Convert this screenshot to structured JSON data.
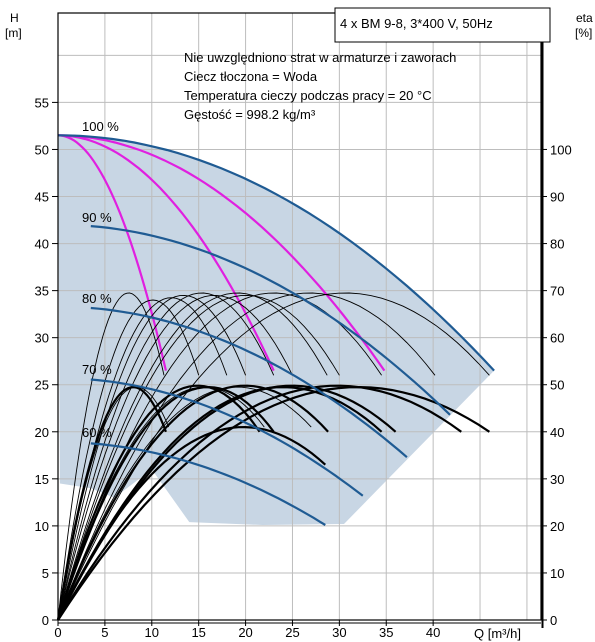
{
  "chart_data": {
    "type": "line",
    "title": "4 x BM 9-8, 3*400 V, 50Hz",
    "notes": [
      "Nie uwzględniono strat w armaturze i zaworach",
      "Ciecz tłoczona = Woda",
      "Temperatura cieczy podczas pracy = 20 °C",
      "Gęstość = 998.2 kg/m³"
    ],
    "xlabel": "Q [m³/h]",
    "ylabel_left": [
      "H",
      "[m]"
    ],
    "ylabel_right": [
      "eta",
      "[%]"
    ],
    "xlim": [
      0,
      51.5
    ],
    "ylim_left": [
      0,
      64.5
    ],
    "ylim_right": [
      0,
      129
    ],
    "x_ticks": [
      "0",
      "5",
      "10",
      "15",
      "20",
      "25",
      "30",
      "35",
      "40"
    ],
    "y_ticks_left": [
      "0",
      "5",
      "10",
      "15",
      "20",
      "25",
      "30",
      "35",
      "40",
      "45",
      "50",
      "55"
    ],
    "y_ticks_right": [
      "0",
      "10",
      "20",
      "30",
      "40",
      "50",
      "60",
      "70",
      "80",
      "90",
      "100"
    ],
    "grid": true,
    "colors": {
      "head_curve": "#1f5b93",
      "system_curve": "#e020e0",
      "efficiency_curve": "#000000",
      "operating_area": "#c8d6e4",
      "grid": "#bdbdbd"
    },
    "speed_labels": [
      "100 %",
      "90 %",
      "80 %",
      "70 %",
      "60 %"
    ],
    "series": [
      {
        "speed": "100 %",
        "H0": 51.5,
        "Qmax": 46.5,
        "Hmin": 26.5,
        "qstart": 0
      },
      {
        "speed": "90 %",
        "H0": 42.0,
        "Qmax": 41.8,
        "Hmin": 21.8,
        "qstart": 3.5
      },
      {
        "speed": "80 %",
        "H0": 33.3,
        "Qmax": 37.2,
        "Hmin": 17.3,
        "qstart": 3.5
      },
      {
        "speed": "70 %",
        "H0": 25.7,
        "Qmax": 32.5,
        "Hmin": 13.2,
        "qstart": 3.5
      },
      {
        "speed": "60 %",
        "H0": 18.9,
        "Qmax": 28.5,
        "Hmin": 10.1,
        "qstart": 3.5
      }
    ],
    "system_curves": [
      {
        "H_at_zero": 51.5,
        "Q_end": 11.5,
        "H_end": 26.5
      },
      {
        "H_at_zero": 51.5,
        "Q_end": 23.0,
        "H_end": 26.5
      },
      {
        "H_at_zero": 51.5,
        "Q_end": 34.8,
        "H_end": 26.5
      }
    ],
    "efficiency_curves_thin": [
      {
        "Qmax": 11.3,
        "peak": 69.5,
        "end": 52
      },
      {
        "Qmax": 23.0,
        "peak": 69.5,
        "end": 52
      },
      {
        "Qmax": 28.7,
        "peak": 69.5,
        "end": 52
      },
      {
        "Qmax": 34.5,
        "peak": 69.5,
        "end": 52
      },
      {
        "Qmax": 40.2,
        "peak": 69.5,
        "end": 52
      },
      {
        "Qmax": 46.0,
        "peak": 69.5,
        "end": 52
      },
      {
        "Qmax": 20.0,
        "peak": 69.0,
        "end": 52
      },
      {
        "Qmax": 25.0,
        "peak": 69.0,
        "end": 52
      },
      {
        "Qmax": 30.0,
        "peak": 69.0,
        "end": 52
      },
      {
        "Qmax": 15.0,
        "peak": 68.0,
        "end": 52
      },
      {
        "Qmax": 18.0,
        "peak": 68.5,
        "end": 52
      },
      {
        "Qmax": 11.8,
        "peak": 49.5,
        "end": 41
      },
      {
        "Qmax": 22.0,
        "peak": 49.5,
        "end": 41
      },
      {
        "Qmax": 27.0,
        "peak": 49.5,
        "end": 41
      }
    ],
    "efficiency_curves_thick": [
      {
        "Qmax": 11.5,
        "peak": 49.5,
        "end": 40
      },
      {
        "Qmax": 23.0,
        "peak": 49.5,
        "end": 40
      },
      {
        "Qmax": 34.5,
        "peak": 49.5,
        "end": 40
      },
      {
        "Qmax": 46.0,
        "peak": 49.5,
        "end": 40
      },
      {
        "Qmax": 21.5,
        "peak": 49.8,
        "end": 40
      },
      {
        "Qmax": 28.8,
        "peak": 49.8,
        "end": 40
      },
      {
        "Qmax": 36.0,
        "peak": 49.8,
        "end": 40
      },
      {
        "Qmax": 43.0,
        "peak": 49.8,
        "end": 40
      },
      {
        "Qmax": 28.5,
        "peak": 41.0,
        "end": 33
      }
    ]
  }
}
